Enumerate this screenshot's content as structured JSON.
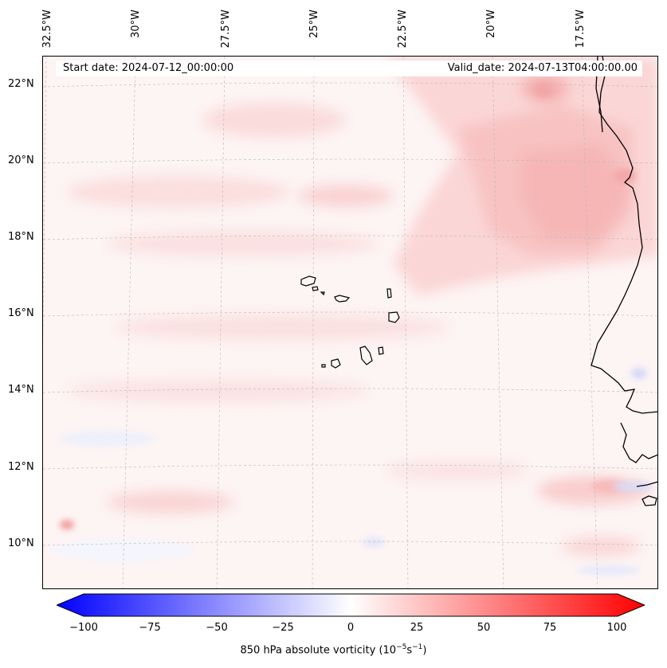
{
  "map": {
    "projection_note": "",
    "info": {
      "start_date": "Start date: 2024-07-12_00:00:00",
      "valid_date": "Valid_date: 2024-07-13T04:00:00.00"
    },
    "lon_labels": [
      "32.5°W",
      "30°W",
      "27.5°W",
      "25°W",
      "22.5°W",
      "20°W",
      "17.5°W"
    ],
    "lat_labels": [
      "22°N",
      "20°N",
      "18°N",
      "16°N",
      "14°N",
      "12°N",
      "10°N"
    ]
  },
  "colorbar": {
    "ticks": [
      "−100",
      "−75",
      "−50",
      "−25",
      "0",
      "25",
      "50",
      "75",
      "100"
    ],
    "label_main": "850 hPa absolute vorticity (10",
    "label_exp1": "−5",
    "label_mid": "s",
    "label_exp2": "−1",
    "label_end": ")",
    "colors": {
      "min": "#0000ff",
      "mid": "#ffffff",
      "max": "#ff0000"
    }
  }
}
